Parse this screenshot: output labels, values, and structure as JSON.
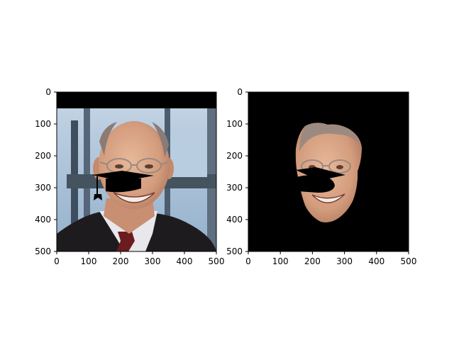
{
  "panels": [
    {
      "id": "left",
      "content": "photo with graduation-cap overlay on mouth",
      "xlim": [
        0,
        500
      ],
      "ylim": [
        500,
        0
      ],
      "xticks": [
        0,
        100,
        200,
        300,
        400,
        500
      ],
      "yticks": [
        0,
        100,
        200,
        300,
        400,
        500
      ]
    },
    {
      "id": "right",
      "content": "segmented face mask on black background",
      "xlim": [
        0,
        500
      ],
      "ylim": [
        500,
        0
      ],
      "xticks": [
        0,
        100,
        200,
        300,
        400,
        500
      ],
      "yticks": [
        0,
        100,
        200,
        300,
        400,
        500
      ]
    }
  ],
  "colors": {
    "sky": "#a9c3db",
    "window_frame": "#3e4e5f",
    "skin": "#d7a283",
    "suit": "#1e1b1f",
    "shirt": "#e7e7ec",
    "tie": "#6a1c1e",
    "mask_bg": "#000000"
  },
  "icons": [
    "graduation-cap"
  ]
}
